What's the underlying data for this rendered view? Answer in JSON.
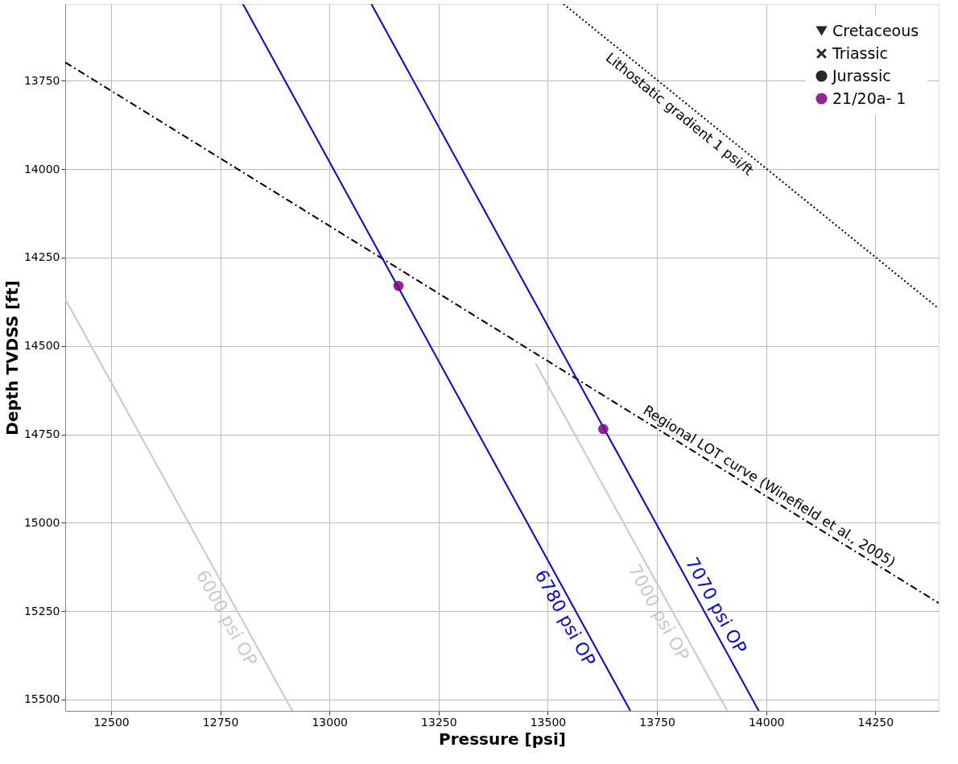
{
  "chart_data": {
    "type": "line",
    "xlabel": "Pressure [psi]",
    "ylabel": "Depth TVDSS [ft]",
    "xlim": [
      12395,
      14395
    ],
    "ylim": [
      15532,
      13533
    ],
    "xticks": [
      12500,
      12750,
      13000,
      13250,
      13500,
      13750,
      14000,
      14250
    ],
    "yticks": [
      13750,
      14000,
      14250,
      14500,
      14750,
      15000,
      15250,
      15500
    ],
    "grid": true,
    "legend": "top right",
    "series": [
      {
        "name": "Lithostatic gradient 1 psi/ft",
        "color": "#000000",
        "line_style": "dotted",
        "x": [
          13536,
          14395
        ],
        "values": [
          13533,
          14394
        ]
      },
      {
        "name": "Regional LOT curve (Winefield et al., 2005)",
        "color": "#000000",
        "line_style": "dashed",
        "x": [
          12395,
          14395
        ],
        "values": [
          13698,
          15227
        ]
      },
      {
        "name": "6780 psi OP",
        "color": "#0000ff",
        "line_style": "solid",
        "x": [
          12802,
          13689
        ],
        "values": [
          13533,
          15532
        ]
      },
      {
        "name": "7070 psi OP",
        "color": "#0000ff",
        "line_style": "solid",
        "x": [
          13096,
          13983
        ],
        "values": [
          13533,
          15532
        ]
      },
      {
        "name": "6000 psi OP",
        "color": "#c8c8c8",
        "line_style": "solid",
        "x": [
          12395,
          12915
        ],
        "values": [
          14367,
          15532
        ]
      },
      {
        "name": "7000 psi OP",
        "color": "#c8c8c8",
        "line_style": "solid",
        "x": [
          13472,
          13911
        ],
        "values": [
          14549,
          15532
        ]
      },
      {
        "name": "Cretaceous",
        "type": "scatter",
        "color": "#000000",
        "marker": "triangle"
      },
      {
        "name": "Triassic",
        "type": "scatter",
        "color": "#000000",
        "marker": "cross"
      },
      {
        "name": "Jurassic",
        "type": "scatter",
        "color": "#000000",
        "marker": "circle"
      },
      {
        "name": "21/20a- 1",
        "type": "scatter",
        "color": "#800080",
        "marker": "circle",
        "x": [
          13158,
          13627
        ],
        "values": [
          14330,
          14735
        ]
      }
    ]
  }
}
